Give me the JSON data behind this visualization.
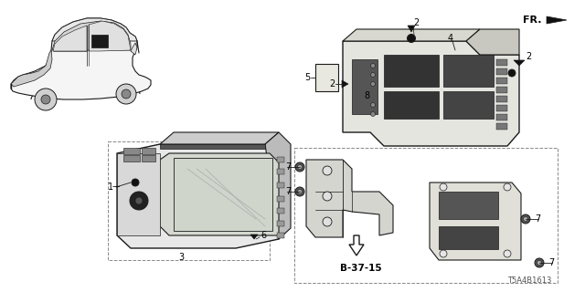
{
  "background_color": "#ffffff",
  "diagram_code": "T5A4B1613",
  "line_color": "#1a1a1a",
  "dashed_color": "#888888",
  "gray_fill": "#e0e0e0",
  "dark_fill": "#222222",
  "med_fill": "#aaaaaa"
}
